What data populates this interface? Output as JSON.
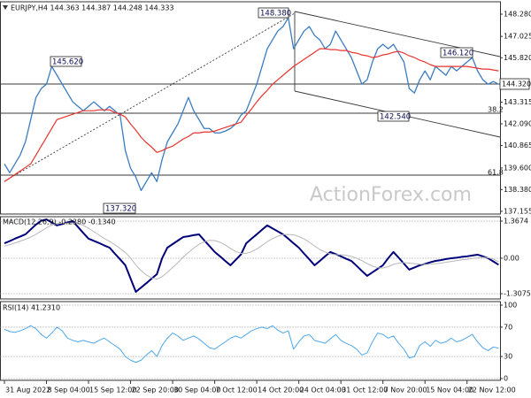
{
  "chart_data": {
    "type": "line",
    "title": "EURJPY,H4 144.363 144.387 144.248 144.333",
    "watermark": "ActionForex.com",
    "annotations": [
      "148.380",
      "145.620",
      "146.120",
      "142.540",
      "137.320",
      "144.320",
      "38.2",
      "61.8"
    ],
    "categories": [
      "31 Aug 2022",
      null,
      null,
      null,
      null,
      null,
      null,
      null,
      "8 Sep 04:00",
      null,
      null,
      null,
      null,
      null,
      null,
      null,
      "15 Sep 12:00",
      null,
      null,
      null,
      null,
      null,
      null,
      null,
      "22 Sep 20:00",
      null,
      null,
      null,
      null,
      null,
      null,
      null,
      "30 Sep 04:00",
      null,
      null,
      null,
      null,
      null,
      null,
      null,
      "7 Oct 12:00",
      null,
      null,
      null,
      null,
      null,
      null,
      null,
      "14 Oct 20:00",
      null,
      null,
      null,
      null,
      null,
      null,
      null,
      "24 Oct 04:00",
      null,
      null,
      null,
      null,
      null,
      null,
      null,
      "31 Oct 12:00",
      null,
      null,
      null,
      null,
      null,
      null,
      null,
      "7 Nov 20:00",
      null,
      null,
      null,
      null,
      null,
      null,
      null,
      "15 Nov 04:00",
      null,
      null,
      null,
      null,
      null,
      null,
      null,
      "22 Nov 12:00",
      null,
      null,
      null,
      null,
      null,
      null
    ],
    "panels": [
      {
        "ylim": [
          137.0,
          148.98
        ],
        "yticks": [
          {
            "value": 148.28,
            "label": "148.280"
          },
          147.025,
          {
            "value": 145.82,
            "label": "145.820"
          },
          143.315,
          {
            "value": 142.09,
            "label": "142.090"
          },
          140.865,
          {
            "value": 139.6,
            "label": "139.600"
          },
          {
            "value": 138.38,
            "label": "138.380"
          },
          137.155
        ],
        "grid": false,
        "series": [
          {
            "color": "#3b7cbf",
            "width": 1.3,
            "values": [
              139.83,
              139.33,
              139.83,
              140.33,
              141.08,
              142.33,
              143.58,
              144.08,
              144.33,
              145.33,
              144.83,
              144.33,
              143.83,
              143.33,
              143.08,
              142.83,
              143.08,
              143.33,
              143.08,
              142.83,
              143.08,
              142.83,
              142.58,
              140.58,
              139.58,
              139.08,
              138.33,
              138.83,
              139.33,
              138.83,
              140.08,
              141.08,
              141.58,
              142.08,
              142.83,
              143.58,
              142.83,
              142.33,
              141.83,
              141.83,
              141.58,
              141.58,
              141.68,
              141.83,
              142.08,
              142.58,
              142.83,
              143.58,
              144.33,
              145.33,
              146.33,
              146.83,
              147.33,
              147.58,
              148.08,
              146.33,
              146.83,
              147.33,
              147.58,
              147.08,
              146.83,
              146.33,
              146.58,
              147.33,
              146.83,
              146.33,
              145.83,
              145.08,
              144.33,
              144.58,
              145.58,
              146.33,
              146.58,
              146.33,
              146.58,
              146.08,
              145.58,
              144.08,
              143.83,
              144.58,
              145.08,
              144.58,
              145.33,
              145.08,
              144.83,
              145.33,
              145.08,
              145.33,
              145.58,
              145.83,
              145.08,
              144.58,
              144.33,
              144.48,
              144.33
            ]
          },
          {
            "color": "#e8342c",
            "width": 1.2,
            "values": [
              138.83,
              139.03,
              139.23,
              139.43,
              139.63,
              139.83,
              140.33,
              140.83,
              141.33,
              141.83,
              142.33,
              142.43,
              142.53,
              142.63,
              142.73,
              142.83,
              142.83,
              142.83,
              142.88,
              142.88,
              142.88,
              142.73,
              142.63,
              142.48,
              142.08,
              141.73,
              141.33,
              141.03,
              140.78,
              140.48,
              140.58,
              140.73,
              140.83,
              141.03,
              141.23,
              141.38,
              141.58,
              141.58,
              141.63,
              141.63,
              141.68,
              141.78,
              141.88,
              141.98,
              142.08,
              142.18,
              142.58,
              142.93,
              143.33,
              143.68,
              143.98,
              144.33,
              144.58,
              144.83,
              145.08,
              145.33,
              145.53,
              145.73,
              145.93,
              146.13,
              146.33,
              146.33,
              146.28,
              146.28,
              146.23,
              146.23,
              146.13,
              146.08,
              145.98,
              145.93,
              145.83,
              145.88,
              145.98,
              146.03,
              146.13,
              146.18,
              146.08,
              145.93,
              145.83,
              145.68,
              145.58,
              145.43,
              145.33,
              145.33,
              145.33,
              145.33,
              145.33,
              145.33,
              145.33,
              145.28,
              145.23,
              145.18,
              145.18,
              145.13,
              145.08
            ]
          }
        ]
      },
      {
        "title": "MACD(12,26,9) -0.2380 -0.1340",
        "ylim": [
          -1.5,
          1.53
        ],
        "yticks": [
          1.3674,
          {
            "value": 0,
            "label": "0.00"
          },
          -1.3075
        ],
        "grid": true,
        "series": [
          {
            "color": "#00007a",
            "width": 2,
            "values": [
              0.55,
              0.63,
              0.72,
              0.8,
              0.88,
              1.06,
              1.24,
              1.38,
              1.43,
              1.32,
              1.21,
              1.26,
              1.32,
              1.37,
              1.15,
              0.93,
              0.72,
              0.64,
              0.56,
              0.47,
              0.39,
              0.17,
              -0.04,
              -0.26,
              -0.75,
              -1.24,
              -1.08,
              -0.92,
              -0.75,
              -0.59,
              0,
              0.39,
              0.52,
              0.65,
              0.78,
              0.81,
              0.85,
              0.88,
              0.66,
              0.45,
              0.23,
              0.07,
              -0.1,
              -0.26,
              -0.06,
              0.14,
              0.55,
              0.72,
              0.88,
              1.05,
              1.21,
              1.1,
              0.99,
              0.88,
              0.72,
              0.55,
              0.39,
              0.17,
              -0.04,
              -0.26,
              -0.1,
              0.07,
              0.23,
              0.15,
              0.07,
              -0.02,
              -0.1,
              -0.28,
              -0.47,
              -0.65,
              -0.52,
              -0.39,
              -0.26,
              0,
              0.23,
              0.02,
              -0.2,
              -0.42,
              -0.34,
              -0.26,
              -0.21,
              -0.15,
              -0.1,
              -0.07,
              -0.03,
              0,
              0.02,
              0.05,
              0.07,
              0.1,
              0.13,
              0.07,
              0,
              -0.12,
              -0.24
            ]
          },
          {
            "color": "#b8b8b8",
            "width": 1,
            "values": [
              0.45,
              0.5,
              0.56,
              0.63,
              0.7,
              0.78,
              0.88,
              1,
              1.12,
              1.22,
              1.28,
              1.29,
              1.29,
              1.3,
              1.28,
              1.21,
              1.1,
              0.98,
              0.85,
              0.73,
              0.62,
              0.5,
              0.36,
              0.21,
              0.01,
              -0.25,
              -0.46,
              -0.62,
              -0.72,
              -0.77,
              -0.68,
              -0.52,
              -0.34,
              -0.16,
              0.04,
              0.21,
              0.37,
              0.51,
              0.61,
              0.66,
              0.65,
              0.59,
              0.49,
              0.36,
              0.25,
              0.18,
              0.18,
              0.24,
              0.34,
              0.47,
              0.61,
              0.72,
              0.81,
              0.87,
              0.88,
              0.86,
              0.8,
              0.71,
              0.59,
              0.45,
              0.32,
              0.23,
              0.16,
              0.13,
              0.13,
              0.11,
              0.07,
              0,
              -0.09,
              -0.2,
              -0.29,
              -0.35,
              -0.36,
              -0.31,
              -0.23,
              -0.18,
              -0.16,
              -0.18,
              -0.2,
              -0.22,
              -0.23,
              -0.22,
              -0.2,
              -0.18,
              -0.15,
              -0.12,
              -0.09,
              -0.06,
              -0.04,
              -0.01,
              0.01,
              0.03,
              0.02,
              -0.03,
              -0.13
            ]
          }
        ]
      },
      {
        "title": "RSI(14) 41.2310",
        "ylim": [
          0,
          100
        ],
        "yticks": [
          100,
          70,
          30,
          0
        ],
        "grid": true,
        "series": [
          {
            "color": "#4fa8e8",
            "width": 1,
            "values": [
              67,
              64,
              63,
              65,
              68,
              72,
              68,
              60,
              55,
              62,
              70,
              65,
              55,
              52,
              50,
              52,
              50,
              48,
              52,
              55,
              50,
              45,
              40,
              30,
              25,
              22,
              25,
              32,
              38,
              30,
              45,
              55,
              62,
              58,
              52,
              55,
              58,
              54,
              48,
              42,
              40,
              45,
              50,
              55,
              58,
              55,
              60,
              65,
              68,
              70,
              68,
              72,
              66,
              62,
              65,
              40,
              50,
              58,
              60,
              52,
              50,
              48,
              54,
              60,
              52,
              48,
              45,
              40,
              32,
              35,
              50,
              62,
              60,
              55,
              58,
              48,
              40,
              28,
              30,
              45,
              50,
              44,
              52,
              48,
              50,
              55,
              50,
              52,
              56,
              60,
              50,
              42,
              38,
              43,
              41.231
            ]
          }
        ]
      }
    ]
  }
}
